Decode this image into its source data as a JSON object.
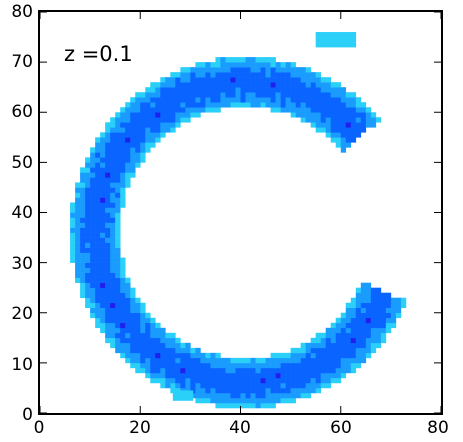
{
  "chart_data": {
    "type": "heatmap",
    "title": "",
    "xlabel": "",
    "ylabel": "",
    "xlim": [
      0,
      80
    ],
    "ylim": [
      0,
      80
    ],
    "x_ticks": [
      "0",
      "20",
      "40",
      "60",
      "80"
    ],
    "y_ticks": [
      "0",
      "10",
      "20",
      "30",
      "40",
      "50",
      "60",
      "70",
      "80"
    ],
    "annotation": "z =0.1",
    "grid": false,
    "colormap": [
      "#2020ee",
      "#0a64ff",
      "#1a9cff",
      "#2ad0f8",
      "#5af7c4"
    ],
    "region": {
      "shape": "partial-annulus (C-shape), open to the right",
      "center": [
        41,
        36
      ],
      "radius_outer": 35,
      "radius_inner": 25,
      "angle_start_deg": 40,
      "angle_end_deg": 337
    },
    "blobs": [
      {
        "x": [
          55,
          63
        ],
        "y": [
          73,
          76
        ],
        "level": 0.85
      },
      {
        "x": [
          26.5,
          30.5
        ],
        "y": [
          2.5,
          4.5
        ],
        "level": 0.85
      }
    ]
  }
}
